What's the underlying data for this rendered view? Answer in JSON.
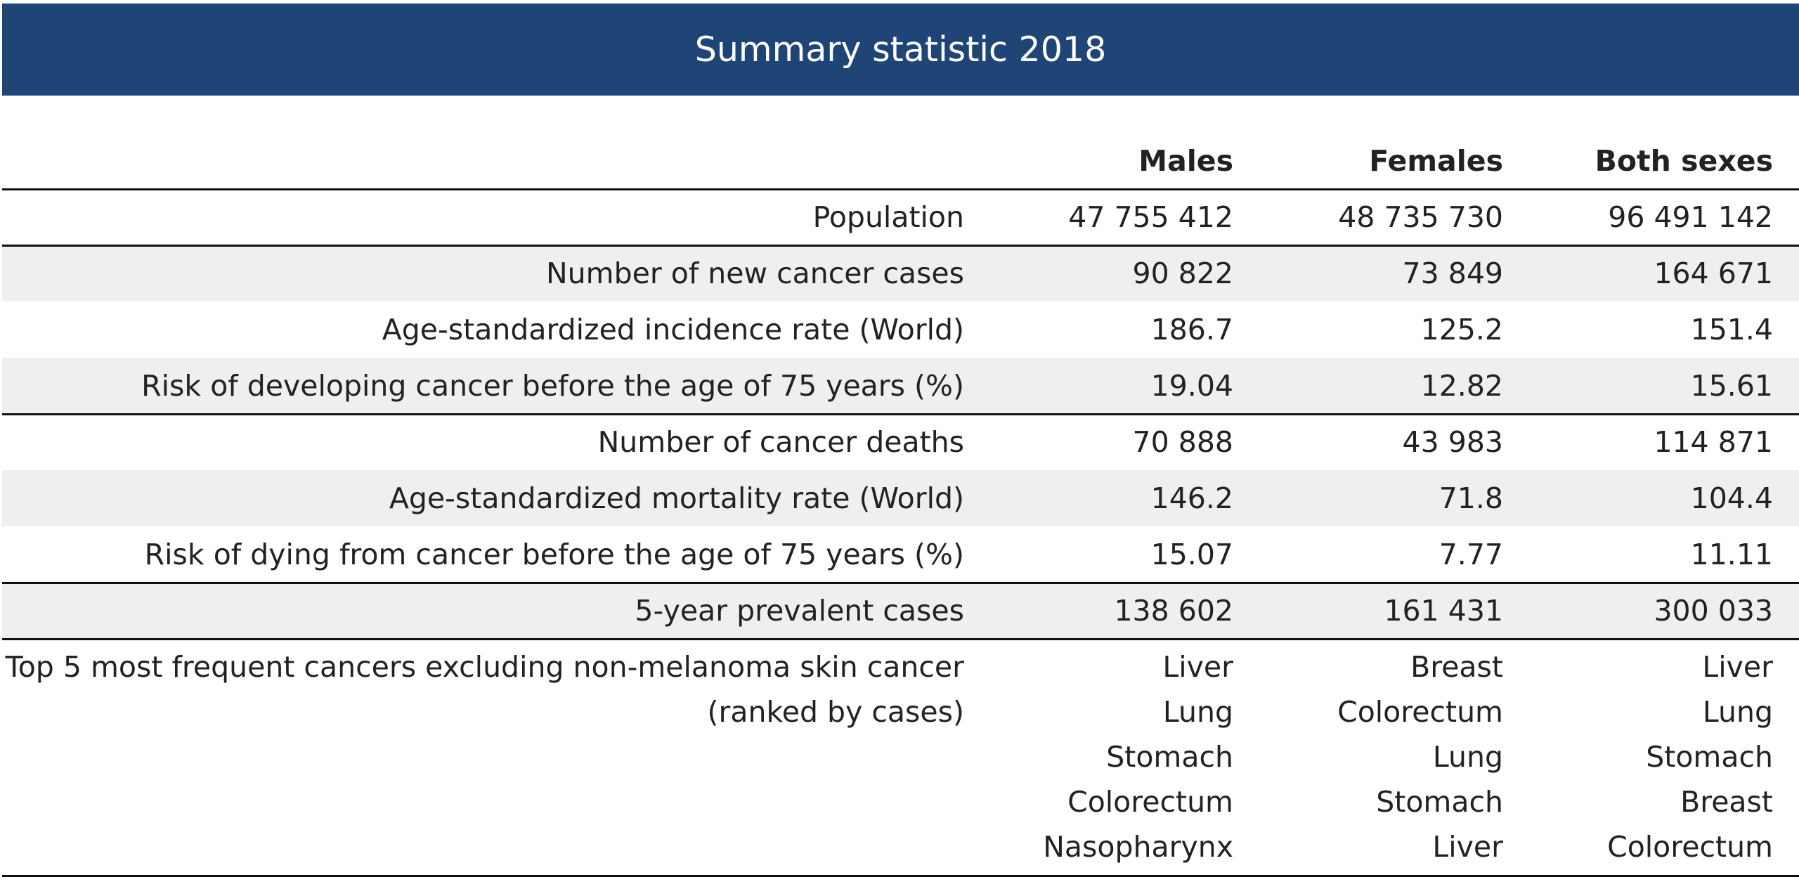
{
  "header": {
    "title": "Summary statistic 2018"
  },
  "table": {
    "columns": [
      "Males",
      "Females",
      "Both sexes"
    ],
    "rows": [
      {
        "label": "Population",
        "values": [
          "47 755 412",
          "48 735 730",
          "96 491 142"
        ]
      },
      {
        "label": "Number of new cancer cases",
        "values": [
          "90 822",
          "73 849",
          "164 671"
        ]
      },
      {
        "label": "Age-standardized incidence rate (World)",
        "values": [
          "186.7",
          "125.2",
          "151.4"
        ]
      },
      {
        "label": "Risk of developing cancer before the age of 75 years (%)",
        "values": [
          "19.04",
          "12.82",
          "15.61"
        ]
      },
      {
        "label": "Number of cancer deaths",
        "values": [
          "70 888",
          "43 983",
          "114 871"
        ]
      },
      {
        "label": "Age-standardized mortality rate (World)",
        "values": [
          "146.2",
          "71.8",
          "104.4"
        ]
      },
      {
        "label": "Risk of dying from cancer before the age of 75 years (%)",
        "values": [
          "15.07",
          "7.77",
          "11.11"
        ]
      },
      {
        "label": "5-year prevalent cases",
        "values": [
          "138 602",
          "161 431",
          "300 033"
        ]
      }
    ],
    "top_cancers": {
      "label": [
        "Top 5 most frequent cancers excluding non-melanoma skin cancer",
        "(ranked by cases)"
      ],
      "values": [
        [
          "Liver",
          "Lung",
          "Stomach",
          "Colorectum",
          "Nasopharynx"
        ],
        [
          "Breast",
          "Colorectum",
          "Lung",
          "Stomach",
          "Liver"
        ],
        [
          "Liver",
          "Lung",
          "Stomach",
          "Breast",
          "Colorectum"
        ]
      ]
    }
  }
}
